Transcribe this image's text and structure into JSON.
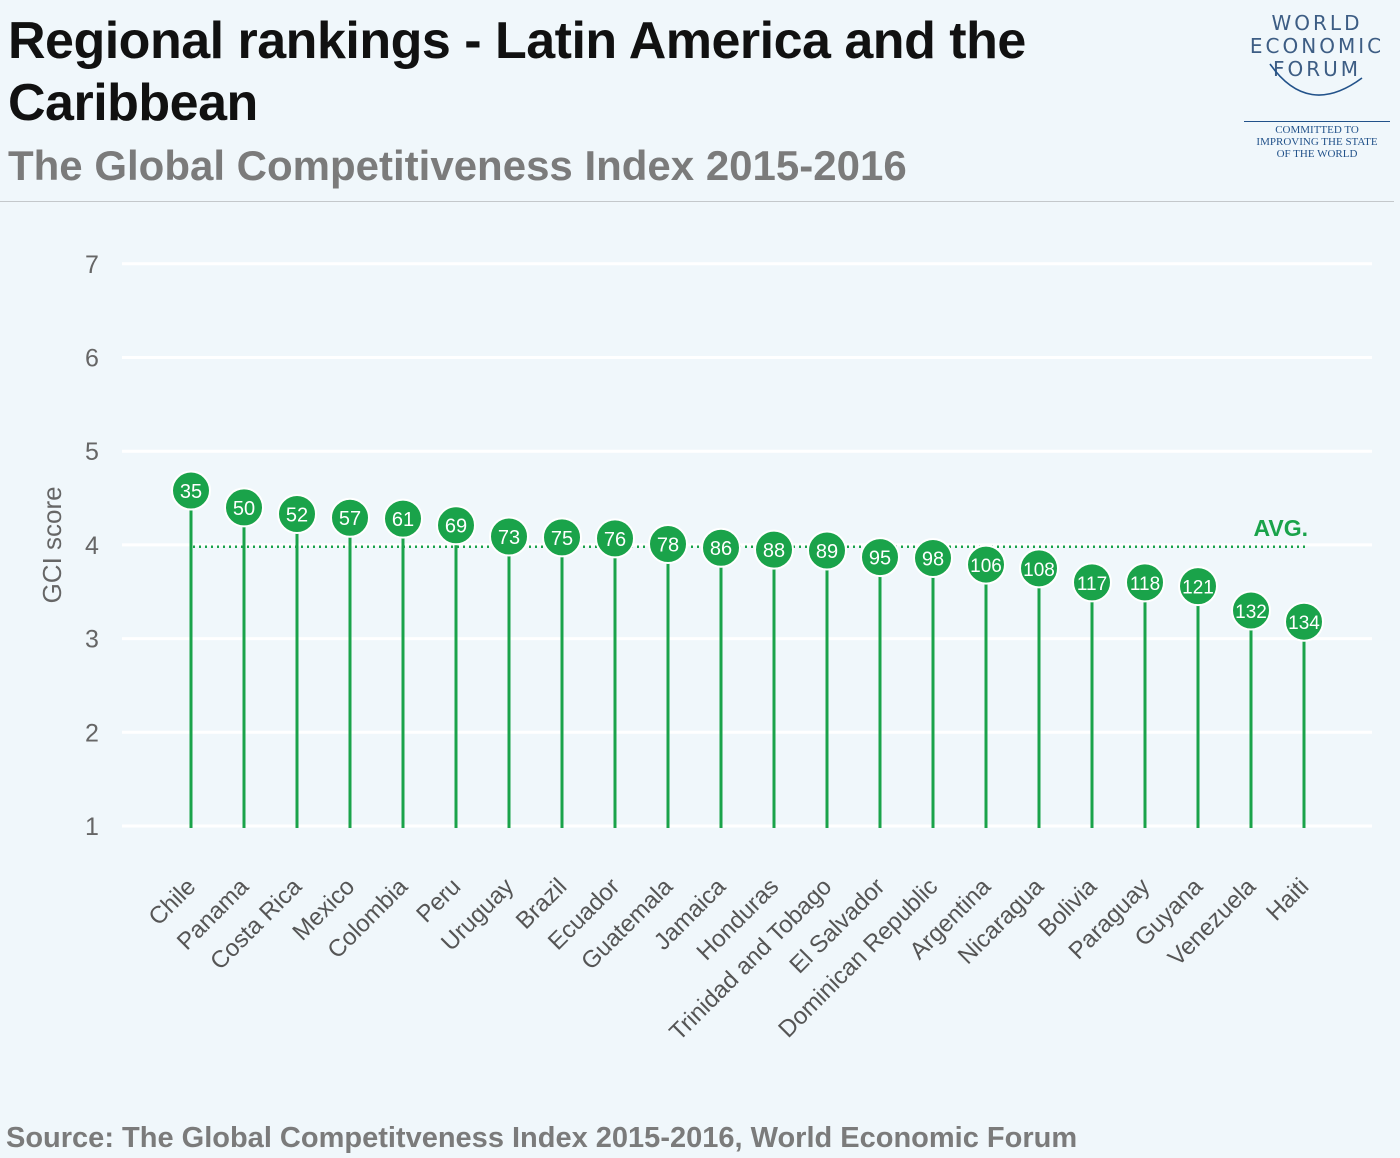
{
  "header": {
    "title": "Regional rankings - Latin America and the Caribbean",
    "subtitle": "The Global Competitiveness Index 2015-2016"
  },
  "logo": {
    "line1": "WORLD",
    "line2": "ECONOMIC",
    "line3": "FORUM",
    "tag1": "COMMITTED TO",
    "tag2": "IMPROVING THE STATE",
    "tag3": "OF THE WORLD"
  },
  "source": "Source: The Global Competitveness Index 2015-2016, World Economic Forum",
  "colors": {
    "accent": "#1aa34a",
    "grid": "#ffffff",
    "background": "#f0f7fb",
    "text_muted": "#7b7b7b"
  },
  "chart_data": {
    "type": "lollipop",
    "ylabel": "GCI score",
    "ylim": [
      1,
      7
    ],
    "yticks": [
      1,
      2,
      3,
      4,
      5,
      6,
      7
    ],
    "average": 3.98,
    "average_label": "AVG.",
    "categories": [
      "Chile",
      "Panama",
      "Costa Rica",
      "Mexico",
      "Colombia",
      "Peru",
      "Uruguay",
      "Brazil",
      "Ecuador",
      "Guatemala",
      "Jamaica",
      "Honduras",
      "Trinidad and Tobago",
      "El Salvador",
      "Dominican Republic",
      "Argentina",
      "Nicaragua",
      "Bolivia",
      "Paraguay",
      "Guyana",
      "Venezuela",
      "Haiti"
    ],
    "values": [
      4.58,
      4.4,
      4.33,
      4.29,
      4.28,
      4.21,
      4.09,
      4.08,
      4.07,
      4.01,
      3.97,
      3.95,
      3.94,
      3.87,
      3.86,
      3.79,
      3.75,
      3.6,
      3.6,
      3.56,
      3.3,
      3.18
    ],
    "ranks": [
      "35",
      "50",
      "52",
      "57",
      "61",
      "69",
      "73",
      "75",
      "76",
      "78",
      "86",
      "88",
      "89",
      "95",
      "98",
      "106",
      "108",
      "117",
      "118",
      "121",
      "132",
      "134"
    ]
  }
}
